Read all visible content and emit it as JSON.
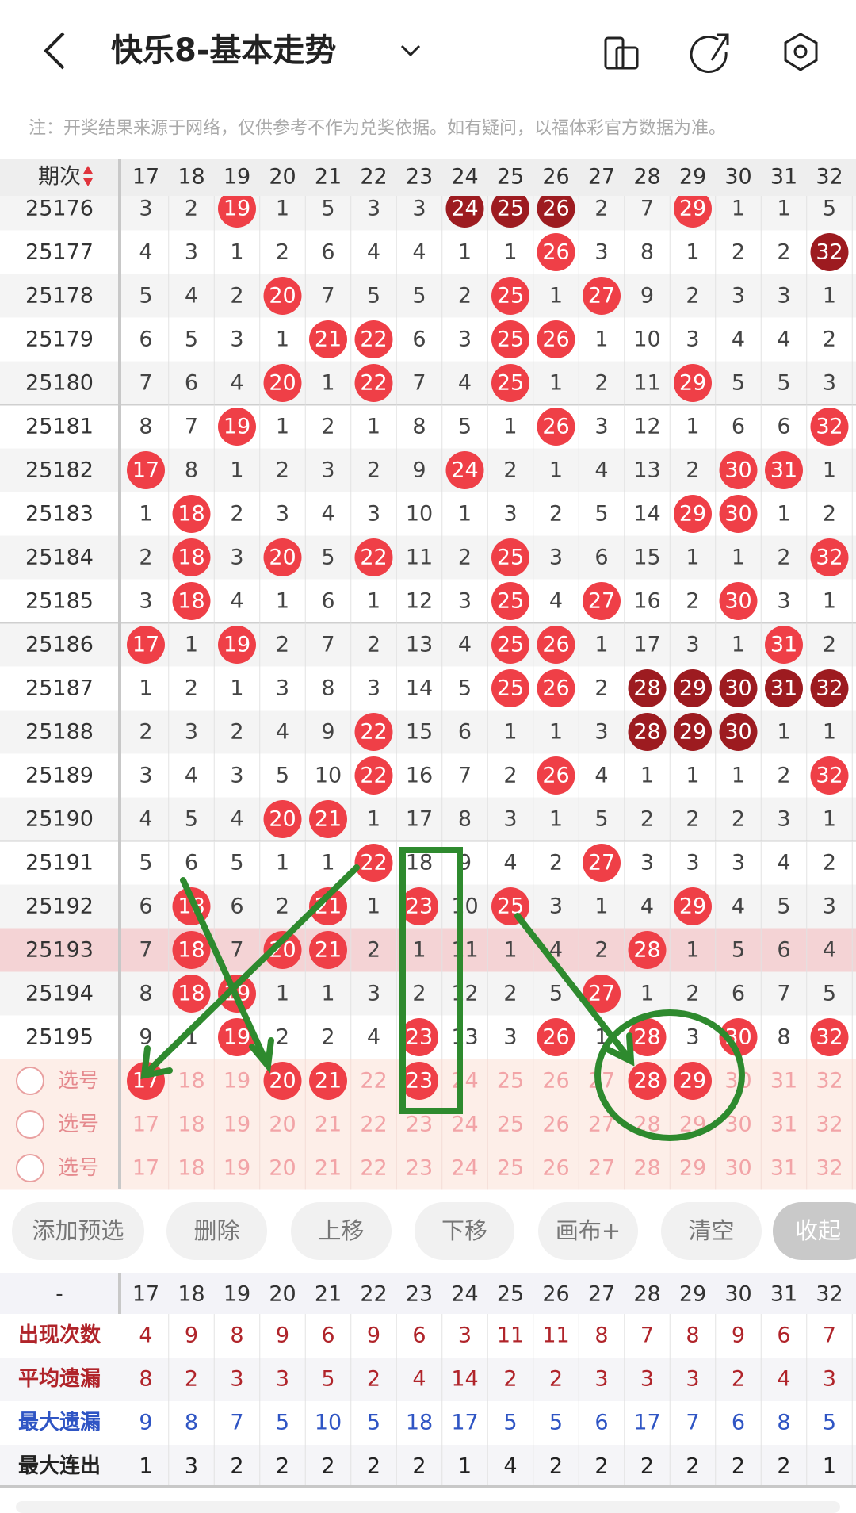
{
  "header": {
    "title": "快乐8-基本走势"
  },
  "note": "注：开奖结果来源于网络，仅供参考不作为兑奖依据。如有疑问，以福体彩官方数据为准。",
  "table": {
    "period_header": "期次",
    "columns": [
      "17",
      "18",
      "19",
      "20",
      "21",
      "22",
      "23",
      "24",
      "25",
      "26",
      "27",
      "28",
      "29",
      "30",
      "31",
      "32"
    ],
    "highlight_row": 17,
    "rows": [
      {
        "period": "25176",
        "values": [
          3,
          2,
          19,
          1,
          5,
          3,
          3,
          24,
          25,
          26,
          2,
          7,
          29,
          1,
          1,
          5
        ],
        "hits": [
          2,
          7,
          8,
          9,
          12
        ],
        "dark": [
          7,
          8,
          9
        ]
      },
      {
        "period": "25177",
        "values": [
          4,
          3,
          1,
          2,
          6,
          4,
          4,
          1,
          1,
          26,
          3,
          8,
          1,
          2,
          2,
          32
        ],
        "hits": [
          9,
          15
        ],
        "dark": [
          15
        ]
      },
      {
        "period": "25178",
        "values": [
          5,
          4,
          2,
          20,
          7,
          5,
          5,
          2,
          25,
          1,
          27,
          9,
          2,
          3,
          3,
          1
        ],
        "hits": [
          3,
          8,
          10
        ],
        "dark": []
      },
      {
        "period": "25179",
        "values": [
          6,
          5,
          3,
          1,
          21,
          22,
          6,
          3,
          25,
          26,
          1,
          10,
          3,
          4,
          4,
          2
        ],
        "hits": [
          4,
          5,
          8,
          9
        ],
        "dark": []
      },
      {
        "period": "25180",
        "values": [
          7,
          6,
          4,
          20,
          1,
          22,
          7,
          4,
          25,
          1,
          2,
          11,
          29,
          5,
          5,
          3
        ],
        "hits": [
          3,
          5,
          8,
          12
        ],
        "dark": []
      },
      {
        "period": "25181",
        "values": [
          8,
          7,
          19,
          1,
          2,
          1,
          8,
          5,
          1,
          26,
          3,
          12,
          1,
          6,
          6,
          32
        ],
        "hits": [
          2,
          9,
          15
        ],
        "dark": []
      },
      {
        "period": "25182",
        "values": [
          17,
          8,
          1,
          2,
          3,
          2,
          9,
          24,
          2,
          1,
          4,
          13,
          2,
          30,
          31,
          1
        ],
        "hits": [
          0,
          7,
          13,
          14
        ],
        "dark": []
      },
      {
        "period": "25183",
        "values": [
          1,
          18,
          2,
          3,
          4,
          3,
          10,
          1,
          3,
          2,
          5,
          14,
          29,
          30,
          1,
          2
        ],
        "hits": [
          1,
          12,
          13
        ],
        "dark": []
      },
      {
        "period": "25184",
        "values": [
          2,
          18,
          3,
          20,
          5,
          22,
          11,
          2,
          25,
          3,
          6,
          15,
          1,
          1,
          2,
          32
        ],
        "hits": [
          1,
          3,
          5,
          8,
          15
        ],
        "dark": []
      },
      {
        "period": "25185",
        "values": [
          3,
          18,
          4,
          1,
          6,
          1,
          12,
          3,
          25,
          4,
          27,
          16,
          2,
          30,
          3,
          1
        ],
        "hits": [
          1,
          8,
          10,
          13
        ],
        "dark": []
      },
      {
        "period": "25186",
        "values": [
          17,
          1,
          19,
          2,
          7,
          2,
          13,
          4,
          25,
          26,
          1,
          17,
          3,
          1,
          31,
          2
        ],
        "hits": [
          0,
          2,
          8,
          9,
          14
        ],
        "dark": []
      },
      {
        "period": "25187",
        "values": [
          1,
          2,
          1,
          3,
          8,
          3,
          14,
          5,
          25,
          26,
          2,
          28,
          29,
          30,
          31,
          32
        ],
        "hits": [
          8,
          9,
          11,
          12,
          13,
          14,
          15
        ],
        "dark": [
          11,
          12,
          13,
          14,
          15
        ]
      },
      {
        "period": "25188",
        "values": [
          2,
          3,
          2,
          4,
          9,
          22,
          15,
          6,
          1,
          1,
          3,
          28,
          29,
          30,
          1,
          1
        ],
        "hits": [
          5,
          11,
          12,
          13
        ],
        "dark": [
          11,
          12,
          13
        ]
      },
      {
        "period": "25189",
        "values": [
          3,
          4,
          3,
          5,
          10,
          22,
          16,
          7,
          2,
          26,
          4,
          1,
          1,
          1,
          2,
          32
        ],
        "hits": [
          5,
          9,
          15
        ],
        "dark": []
      },
      {
        "period": "25190",
        "values": [
          4,
          5,
          4,
          20,
          21,
          1,
          17,
          8,
          3,
          1,
          5,
          2,
          2,
          2,
          3,
          1
        ],
        "hits": [
          3,
          4
        ],
        "dark": []
      },
      {
        "period": "25191",
        "values": [
          5,
          6,
          5,
          1,
          1,
          22,
          18,
          9,
          4,
          2,
          27,
          3,
          3,
          3,
          4,
          2
        ],
        "hits": [
          5,
          10
        ],
        "dark": []
      },
      {
        "period": "25192",
        "values": [
          6,
          18,
          6,
          2,
          21,
          1,
          23,
          10,
          25,
          3,
          1,
          4,
          29,
          4,
          5,
          3
        ],
        "hits": [
          1,
          4,
          6,
          8,
          12
        ],
        "dark": []
      },
      {
        "period": "25193",
        "values": [
          7,
          18,
          7,
          20,
          21,
          2,
          1,
          11,
          1,
          4,
          2,
          28,
          1,
          5,
          6,
          4
        ],
        "hits": [
          1,
          3,
          4,
          11
        ],
        "dark": []
      },
      {
        "period": "25194",
        "values": [
          8,
          18,
          19,
          1,
          1,
          3,
          2,
          12,
          2,
          5,
          27,
          1,
          2,
          6,
          7,
          5
        ],
        "hits": [
          1,
          2,
          10
        ],
        "dark": []
      },
      {
        "period": "25195",
        "values": [
          9,
          1,
          19,
          2,
          2,
          4,
          23,
          13,
          3,
          26,
          1,
          28,
          3,
          30,
          8,
          32
        ],
        "hits": [
          2,
          6,
          9,
          11,
          13,
          15
        ],
        "dark": []
      }
    ]
  },
  "selection": {
    "rows": [
      {
        "label": "选号",
        "selected": [
          0,
          3,
          4,
          6,
          11,
          12
        ]
      },
      {
        "label": "选号",
        "selected": []
      },
      {
        "label": "选号",
        "selected": []
      }
    ]
  },
  "buttons": [
    "添加预选",
    "删除",
    "上移",
    "下移",
    "画布+",
    "清空",
    "收起"
  ],
  "stats": {
    "corner": "-",
    "rows": [
      {
        "label": "出现次数",
        "color": "#b0242a",
        "values": [
          4,
          9,
          8,
          9,
          6,
          9,
          6,
          3,
          11,
          11,
          8,
          7,
          8,
          9,
          6,
          7
        ]
      },
      {
        "label": "平均遗漏",
        "color": "#b0242a",
        "values": [
          8,
          2,
          3,
          3,
          5,
          2,
          4,
          14,
          2,
          2,
          3,
          3,
          3,
          2,
          4,
          3
        ]
      },
      {
        "label": "最大遗漏",
        "color": "#2f55c4",
        "values": [
          9,
          8,
          7,
          5,
          10,
          5,
          18,
          17,
          5,
          5,
          6,
          17,
          7,
          6,
          8,
          5
        ]
      },
      {
        "label": "最大连出",
        "color": "#222222",
        "values": [
          1,
          3,
          2,
          2,
          2,
          2,
          2,
          1,
          4,
          2,
          2,
          2,
          2,
          2,
          2,
          1
        ]
      }
    ]
  }
}
